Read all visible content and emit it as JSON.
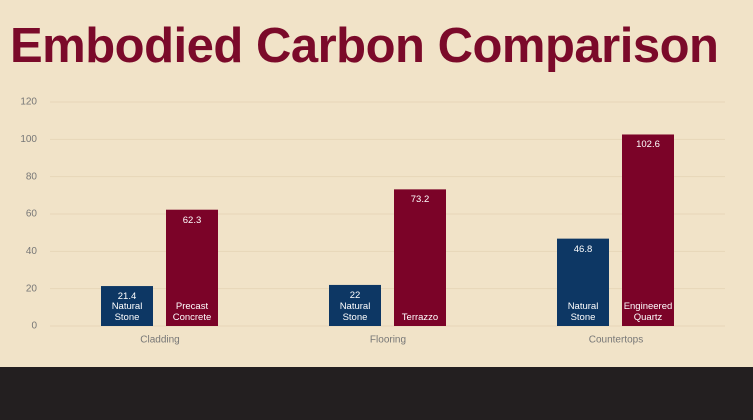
{
  "chart_data": {
    "type": "bar",
    "title": "Embodied Carbon Comparison",
    "categories": [
      "Cladding",
      "Flooring",
      "Countertops"
    ],
    "series": [
      {
        "color": "#0d3764",
        "values": [
          21.4,
          22,
          46.8
        ],
        "labels": [
          "Natural Stone",
          "Natural Stone",
          "Natural Stone"
        ]
      },
      {
        "color": "#7b0328",
        "values": [
          62.3,
          73.2,
          102.6
        ],
        "labels": [
          "Precast Concrete",
          "Terrazzo",
          "Engineered Quartz"
        ]
      }
    ],
    "ylim": [
      0,
      120
    ],
    "yticks": [
      0,
      20,
      40,
      60,
      80,
      100,
      120
    ],
    "grid": true
  }
}
